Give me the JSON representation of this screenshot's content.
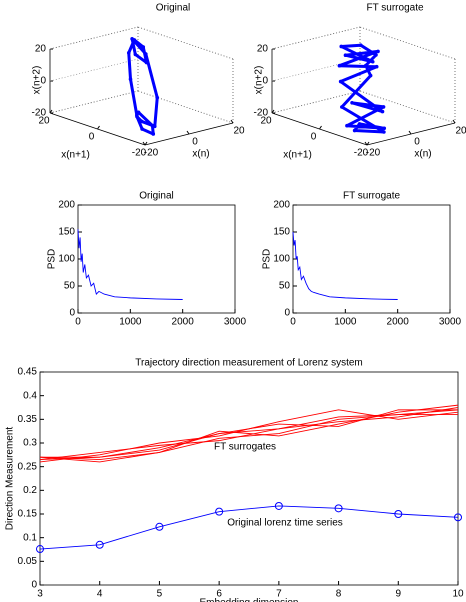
{
  "chart_data": [
    {
      "type": "line3d",
      "title": "Original",
      "xlabel": "x(n)",
      "ylabel": "x(n+1)",
      "zlabel": "x(n+2)",
      "xlim": [
        -20,
        20
      ],
      "ylim": [
        -20,
        20
      ],
      "zlim": [
        -20,
        20
      ],
      "xticks": [
        -20,
        0,
        20
      ],
      "yticks": [
        -20,
        0,
        20
      ],
      "zticks": [
        -20,
        0,
        20
      ],
      "color": "#0000ff",
      "x": [
        -15,
        -17,
        -13,
        -8,
        -10,
        -14,
        -5,
        5,
        14,
        17,
        12,
        8,
        13,
        16,
        5,
        -8,
        -15
      ],
      "y": [
        -12,
        -16,
        -17,
        -12,
        -8,
        -11,
        0,
        10,
        16,
        15,
        9,
        10,
        16,
        13,
        -2,
        -13,
        -14
      ],
      "z": [
        -8,
        -13,
        -17,
        -16,
        -9,
        -8,
        6,
        14,
        16,
        11,
        6,
        12,
        17,
        8,
        -8,
        -16,
        -10
      ]
    },
    {
      "type": "line3d",
      "title": "FT surrogate",
      "xlabel": "x(n)",
      "ylabel": "x(n+1)",
      "zlabel": "x(n+2)",
      "xlim": [
        -20,
        20
      ],
      "ylim": [
        -20,
        20
      ],
      "zlim": [
        -20,
        20
      ],
      "xticks": [
        -20,
        0,
        20
      ],
      "yticks": [
        -20,
        0,
        20
      ],
      "zticks": [
        -20,
        0,
        20
      ],
      "color": "#0000ff",
      "x": [
        -18,
        -10,
        -14,
        -6,
        -16,
        0,
        -5,
        6,
        2,
        12,
        8,
        15,
        5,
        16,
        10,
        14,
        0,
        -12,
        -8,
        -17
      ],
      "y": [
        -15,
        -18,
        -6,
        -14,
        -10,
        -8,
        5,
        0,
        12,
        5,
        15,
        10,
        14,
        16,
        4,
        12,
        -3,
        -2,
        -16,
        -12
      ],
      "z": [
        -10,
        -14,
        -17,
        -4,
        0,
        -12,
        2,
        10,
        6,
        15,
        9,
        5,
        16,
        12,
        14,
        2,
        8,
        -8,
        -18,
        -16
      ]
    },
    {
      "type": "line",
      "title": "Original",
      "ylabel": "PSD",
      "xlim": [
        0,
        3000
      ],
      "ylim": [
        0,
        200
      ],
      "xticks": [
        0,
        1000,
        2000,
        3000
      ],
      "yticks": [
        0,
        50,
        100,
        150,
        200
      ],
      "color": "#0000ff",
      "x": [
        0,
        20,
        40,
        60,
        80,
        100,
        130,
        160,
        200,
        250,
        300,
        350,
        400,
        500,
        700,
        1000,
        1500,
        2000
      ],
      "values": [
        155,
        120,
        140,
        95,
        110,
        75,
        90,
        65,
        70,
        50,
        55,
        35,
        40,
        35,
        30,
        28,
        26,
        25
      ]
    },
    {
      "type": "line",
      "title": "FT surrogate",
      "ylabel": "PSD",
      "xlim": [
        0,
        3000
      ],
      "ylim": [
        0,
        200
      ],
      "xticks": [
        0,
        1000,
        2000,
        3000
      ],
      "yticks": [
        0,
        50,
        100,
        150,
        200
      ],
      "color": "#0000ff",
      "x": [
        0,
        20,
        40,
        60,
        80,
        100,
        130,
        160,
        200,
        250,
        300,
        350,
        400,
        500,
        700,
        1000,
        1500,
        2000
      ],
      "values": [
        150,
        125,
        135,
        100,
        105,
        80,
        85,
        62,
        68,
        55,
        45,
        40,
        38,
        35,
        30,
        28,
        26,
        25
      ]
    },
    {
      "type": "line",
      "title": "Trajectory direction measurement of Lorenz system",
      "xlabel": "Embedding dimension",
      "ylabel": "Direction Measurement",
      "xlim": [
        3,
        10
      ],
      "ylim": [
        0,
        0.45
      ],
      "xticks": [
        3,
        4,
        5,
        6,
        7,
        8,
        9,
        10
      ],
      "yticks": [
        0,
        0.05,
        0.1,
        0.15,
        0.2,
        0.25,
        0.3,
        0.35,
        0.4,
        0.45
      ],
      "annotations": [
        "FT surrogates",
        "Original lorenz time series"
      ],
      "x": [
        3,
        4,
        5,
        6,
        7,
        8,
        9,
        10
      ],
      "series": [
        {
          "color": "#ff0000",
          "values": [
            0.27,
            0.265,
            0.28,
            0.31,
            0.32,
            0.35,
            0.36,
            0.37
          ]
        },
        {
          "color": "#ff0000",
          "values": [
            0.265,
            0.27,
            0.285,
            0.32,
            0.33,
            0.345,
            0.355,
            0.375
          ]
        },
        {
          "color": "#ff0000",
          "values": [
            0.26,
            0.275,
            0.3,
            0.315,
            0.345,
            0.37,
            0.35,
            0.365
          ]
        },
        {
          "color": "#ff0000",
          "values": [
            0.27,
            0.26,
            0.28,
            0.325,
            0.315,
            0.34,
            0.365,
            0.38
          ]
        },
        {
          "color": "#ff0000",
          "values": [
            0.265,
            0.28,
            0.295,
            0.305,
            0.33,
            0.355,
            0.36,
            0.36
          ]
        },
        {
          "color": "#ff0000",
          "values": [
            0.27,
            0.27,
            0.29,
            0.32,
            0.34,
            0.335,
            0.37,
            0.37
          ]
        },
        {
          "color": "#0000ff",
          "marker": "o",
          "values": [
            0.076,
            0.085,
            0.123,
            0.155,
            0.167,
            0.162,
            0.15,
            0.143
          ]
        }
      ]
    }
  ]
}
